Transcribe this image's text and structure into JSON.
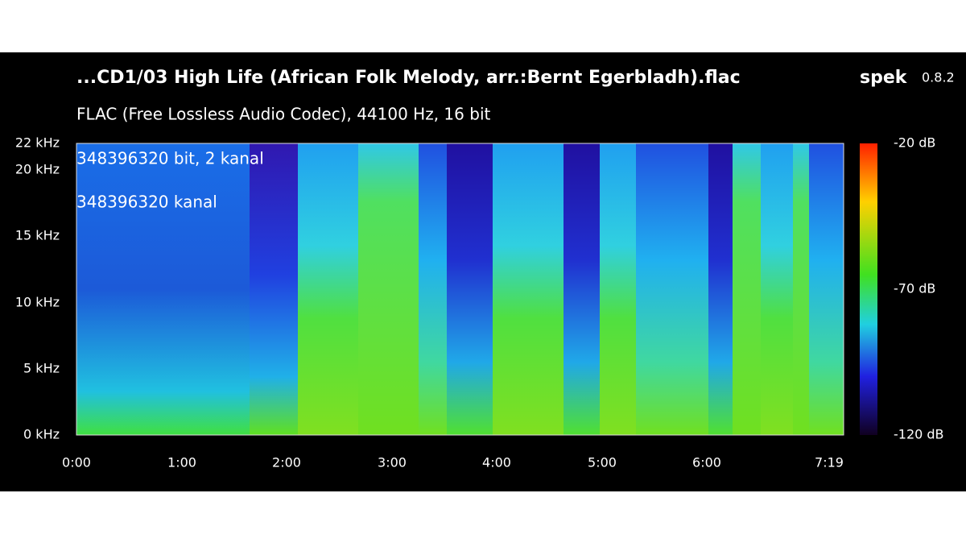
{
  "window": {
    "title": "...CD1/03 High Life (African Folk Melody, arr.:Bernt Egerbladh).flac",
    "app_name": "spek",
    "app_version": "0.8.2"
  },
  "file_info": "FLAC (Free Lossless Audio Codec), 44100 Hz, 16 bit",
  "overlay": [
    "348396320 bit, 2 kanal",
    "348396320 kanal"
  ],
  "frequency_axis": [
    "22 kHz",
    "20 kHz",
    "15 kHz",
    "10 kHz",
    "5 kHz",
    "0 kHz"
  ],
  "time_axis": [
    "0:00",
    "1:00",
    "2:00",
    "3:00",
    "4:00",
    "5:00",
    "6:00",
    "7:19"
  ],
  "level_scale": [
    "-20 dB",
    "-70 dB",
    "-120 dB"
  ]
}
